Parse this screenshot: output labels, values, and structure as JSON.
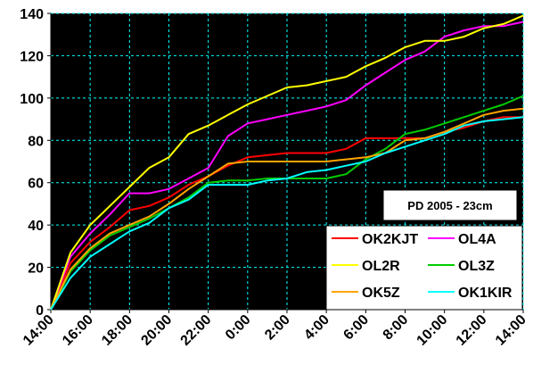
{
  "chart_data": {
    "type": "line",
    "title": "PD 2005 - 23cm",
    "xlabel": "",
    "ylabel": "",
    "ylim": [
      0,
      140
    ],
    "yticks": [
      "0",
      "20",
      "40",
      "60",
      "80",
      "100",
      "120",
      "140"
    ],
    "x": [
      "14:00",
      "15:00",
      "16:00",
      "17:00",
      "18:00",
      "19:00",
      "20:00",
      "21:00",
      "22:00",
      "23:00",
      "0:00",
      "1:00",
      "2:00",
      "3:00",
      "4:00",
      "5:00",
      "6:00",
      "7:00",
      "8:00",
      "9:00",
      "10:00",
      "11:00",
      "12:00",
      "13:00",
      "14:00"
    ],
    "xtick_labels": [
      "14:00",
      "16:00",
      "18:00",
      "20:00",
      "22:00",
      "0:00",
      "2:00",
      "4:00",
      "6:00",
      "8:00",
      "10:00",
      "12:00",
      "14:00"
    ],
    "grid": true,
    "legend_position": "bottom-right",
    "series": [
      {
        "name": "OK2KJT",
        "color": "#ff0000",
        "values": [
          0,
          22,
          32,
          39,
          47,
          49,
          53,
          59,
          63,
          68,
          72,
          73,
          74,
          74,
          74,
          76,
          81,
          81,
          81,
          81,
          84,
          86,
          89,
          91,
          91
        ]
      },
      {
        "name": "OL4A",
        "color": "#ff00ff",
        "values": [
          0,
          25,
          36,
          45,
          55,
          55,
          57,
          62,
          67,
          82,
          88,
          90,
          92,
          94,
          96,
          99,
          106,
          112,
          118,
          122,
          129,
          132,
          134,
          134,
          136
        ]
      },
      {
        "name": "OL2R",
        "color": "#ffff00",
        "values": [
          0,
          27,
          40,
          49,
          58,
          67,
          72,
          83,
          87,
          92,
          97,
          101,
          105,
          106,
          108,
          110,
          115,
          119,
          124,
          127,
          127,
          129,
          133,
          135,
          139
        ]
      },
      {
        "name": "OL3Z",
        "color": "#00cc00",
        "values": [
          0,
          18,
          28,
          35,
          39,
          43,
          48,
          53,
          60,
          61,
          61,
          62,
          62,
          62,
          62,
          64,
          71,
          76,
          83,
          85,
          88,
          91,
          94,
          97,
          101
        ]
      },
      {
        "name": "OK5Z",
        "color": "#ffa500",
        "values": [
          0,
          19,
          29,
          36,
          40,
          44,
          50,
          57,
          63,
          69,
          70,
          70,
          70,
          70,
          70,
          71,
          72,
          74,
          80,
          81,
          84,
          88,
          92,
          94,
          95
        ]
      },
      {
        "name": "OK1KIR",
        "color": "#00ffff",
        "values": [
          0,
          15,
          25,
          31,
          37,
          41,
          48,
          52,
          59,
          59,
          59,
          61,
          62,
          65,
          66,
          68,
          70,
          74,
          77,
          80,
          83,
          87,
          89,
          90,
          91
        ]
      }
    ]
  }
}
